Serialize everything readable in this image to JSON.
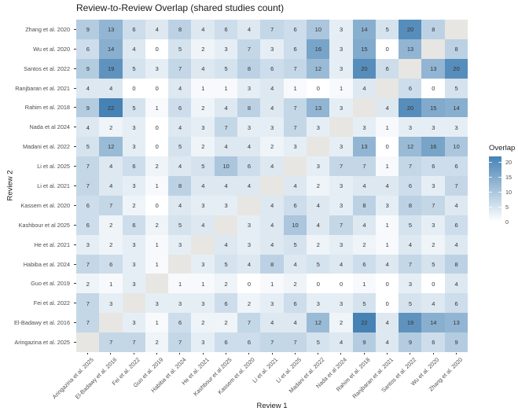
{
  "chart_data": {
    "type": "heatmap",
    "title": "Review-to-Review Overlap (shared studies count)",
    "xlabel": "Review 1",
    "ylabel": "Review 2",
    "legend": {
      "title": "Overlap",
      "tick_values": [
        20,
        15,
        10,
        5,
        0
      ],
      "range": [
        0,
        22
      ],
      "position": "right"
    },
    "x_categories": [
      "Aringazina et al. 2025",
      "El-Badawy et al. 2016",
      "Fei et al. 2022",
      "Guo et al. 2019",
      "Habiba et al. 2024",
      "He et al. 2021",
      "Kashbour et al 2025",
      "Kassem et al. 2020",
      "Li et al. 2021",
      "Li et al. 2025",
      "Madani et al. 2022",
      "Nada et al 2024",
      "Rahim et al. 2018",
      "Ranjbaran et al. 2021",
      "Santos et al. 2022",
      "Wu et al. 2020",
      "Zhang et al. 2020"
    ],
    "y_categories": [
      "Zhang et al. 2020",
      "Wu et al. 2020",
      "Santos et al. 2022",
      "Ranjbaran et al. 2021",
      "Rahim et al. 2018",
      "Nada et al 2024",
      "Madani et al. 2022",
      "Li et al. 2025",
      "Li et al. 2021",
      "Kassem et al. 2020",
      "Kashbour et al 2025",
      "He et al. 2021",
      "Habiba et al. 2024",
      "Guo et al. 2019",
      "Fei et al. 2022",
      "El-Badawy et al. 2016",
      "Aringazina et al. 2025"
    ],
    "matrix": [
      [
        9,
        13,
        6,
        4,
        8,
        4,
        6,
        4,
        7,
        6,
        10,
        3,
        14,
        5,
        20,
        8,
        null
      ],
      [
        6,
        14,
        4,
        0,
        5,
        2,
        3,
        7,
        3,
        6,
        16,
        3,
        15,
        0,
        13,
        null,
        8
      ],
      [
        9,
        19,
        5,
        3,
        7,
        4,
        5,
        8,
        6,
        7,
        12,
        3,
        20,
        6,
        null,
        13,
        20
      ],
      [
        4,
        4,
        0,
        0,
        4,
        1,
        1,
        3,
        4,
        1,
        0,
        1,
        4,
        null,
        6,
        0,
        5
      ],
      [
        9,
        22,
        5,
        1,
        6,
        2,
        4,
        8,
        4,
        7,
        13,
        3,
        null,
        4,
        20,
        15,
        14
      ],
      [
        4,
        2,
        3,
        0,
        4,
        3,
        7,
        3,
        3,
        7,
        3,
        null,
        3,
        1,
        3,
        3,
        3
      ],
      [
        5,
        12,
        3,
        0,
        5,
        2,
        4,
        4,
        2,
        3,
        null,
        3,
        13,
        0,
        12,
        16,
        10
      ],
      [
        7,
        4,
        6,
        2,
        4,
        5,
        10,
        6,
        4,
        null,
        3,
        7,
        7,
        1,
        7,
        6,
        6
      ],
      [
        7,
        4,
        3,
        1,
        8,
        4,
        4,
        4,
        null,
        4,
        2,
        3,
        4,
        4,
        6,
        3,
        7
      ],
      [
        6,
        7,
        2,
        0,
        4,
        3,
        3,
        null,
        4,
        6,
        4,
        3,
        8,
        3,
        8,
        7,
        4
      ],
      [
        6,
        2,
        6,
        2,
        5,
        4,
        null,
        3,
        4,
        10,
        4,
        7,
        4,
        1,
        5,
        3,
        6
      ],
      [
        3,
        2,
        3,
        1,
        3,
        null,
        4,
        3,
        4,
        5,
        2,
        3,
        2,
        1,
        4,
        2,
        4
      ],
      [
        7,
        6,
        3,
        1,
        null,
        3,
        5,
        4,
        8,
        4,
        5,
        4,
        6,
        4,
        7,
        5,
        8
      ],
      [
        2,
        1,
        3,
        null,
        1,
        1,
        2,
        0,
        1,
        2,
        0,
        0,
        1,
        0,
        3,
        0,
        4
      ],
      [
        7,
        3,
        null,
        3,
        3,
        3,
        6,
        2,
        3,
        6,
        3,
        3,
        5,
        0,
        5,
        4,
        6
      ],
      [
        7,
        null,
        3,
        1,
        6,
        2,
        2,
        7,
        4,
        4,
        12,
        2,
        22,
        4,
        19,
        14,
        13
      ],
      [
        null,
        7,
        7,
        2,
        7,
        3,
        6,
        6,
        7,
        7,
        5,
        4,
        9,
        4,
        9,
        6,
        9
      ]
    ],
    "na_diagonal": true,
    "grid": false,
    "colors": {
      "low": "#FFFFFF",
      "high": "#4682B4",
      "na_cell": "#E7E6E2",
      "cell_text": "#333333",
      "axis_text": "#4D4D4D",
      "title_text": "#1A1A1A"
    }
  }
}
